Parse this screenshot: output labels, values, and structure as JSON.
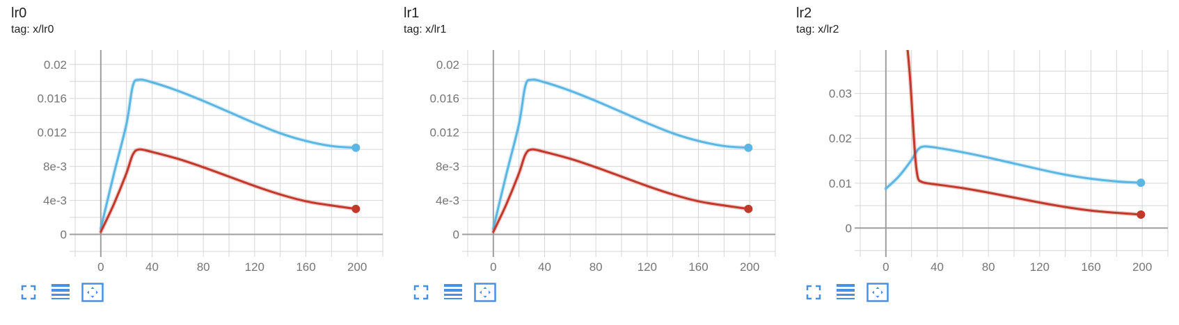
{
  "colors": {
    "series_blue": "#5bb6e3",
    "series_red": "#c0392b",
    "grid": "#d6d6d6",
    "axis": "#9e9e9e",
    "icon": "#4a90e2"
  },
  "toolbar_icons": [
    "fullscreen-icon",
    "list-icon",
    "fit-domain-icon"
  ],
  "chart_data": [
    {
      "type": "line",
      "title": "lr0",
      "tag": "tag: x/lr0",
      "xlim": [
        -20,
        220
      ],
      "ylim": [
        -0.002,
        0.0217
      ],
      "x_ticks": [
        0,
        40,
        80,
        120,
        160,
        200
      ],
      "x_tick_labels": [
        "0",
        "40",
        "80",
        "120",
        "160",
        "200"
      ],
      "y_ticks": [
        0,
        0.004,
        0.008,
        0.012,
        0.016,
        0.02
      ],
      "y_tick_labels": [
        "0",
        "4e-3",
        "8e-3",
        "0.012",
        "0.016",
        "0.02"
      ],
      "series": [
        {
          "name": "blue",
          "color": "#5bb6e3",
          "x": [
            0,
            10,
            20,
            25,
            30,
            40,
            60,
            80,
            100,
            120,
            140,
            160,
            180,
            199
          ],
          "y": [
            0.0007,
            0.007,
            0.013,
            0.0175,
            0.0182,
            0.0179,
            0.0169,
            0.0157,
            0.0144,
            0.0131,
            0.0119,
            0.011,
            0.0104,
            0.0102
          ]
        },
        {
          "name": "red",
          "color": "#c0392b",
          "x": [
            0,
            10,
            20,
            25,
            30,
            40,
            60,
            80,
            100,
            120,
            140,
            160,
            180,
            199
          ],
          "y": [
            0.0003,
            0.0035,
            0.0072,
            0.0094,
            0.01,
            0.0097,
            0.0089,
            0.0079,
            0.0068,
            0.0057,
            0.0047,
            0.0039,
            0.0034,
            0.003
          ]
        }
      ]
    },
    {
      "type": "line",
      "title": "lr1",
      "tag": "tag: x/lr1",
      "xlim": [
        -20,
        220
      ],
      "ylim": [
        -0.002,
        0.0217
      ],
      "x_ticks": [
        0,
        40,
        80,
        120,
        160,
        200
      ],
      "x_tick_labels": [
        "0",
        "40",
        "80",
        "120",
        "160",
        "200"
      ],
      "y_ticks": [
        0,
        0.004,
        0.008,
        0.012,
        0.016,
        0.02
      ],
      "y_tick_labels": [
        "0",
        "4e-3",
        "8e-3",
        "0.012",
        "0.016",
        "0.02"
      ],
      "series": [
        {
          "name": "blue",
          "color": "#5bb6e3",
          "x": [
            0,
            10,
            20,
            25,
            30,
            40,
            60,
            80,
            100,
            120,
            140,
            160,
            180,
            199
          ],
          "y": [
            0.0007,
            0.007,
            0.013,
            0.0175,
            0.0182,
            0.0179,
            0.0169,
            0.0157,
            0.0144,
            0.0131,
            0.0119,
            0.011,
            0.0104,
            0.0102
          ]
        },
        {
          "name": "red",
          "color": "#c0392b",
          "x": [
            0,
            10,
            20,
            25,
            30,
            40,
            60,
            80,
            100,
            120,
            140,
            160,
            180,
            199
          ],
          "y": [
            0.0003,
            0.0035,
            0.0072,
            0.0094,
            0.01,
            0.0097,
            0.0089,
            0.0079,
            0.0068,
            0.0057,
            0.0047,
            0.0039,
            0.0034,
            0.003
          ]
        }
      ]
    },
    {
      "type": "line",
      "title": "lr2",
      "tag": "tag: x/lr2",
      "xlim": [
        -20,
        220
      ],
      "ylim": [
        -0.0052,
        0.0397
      ],
      "x_ticks": [
        0,
        40,
        80,
        120,
        160,
        200
      ],
      "x_tick_labels": [
        "0",
        "40",
        "80",
        "120",
        "160",
        "200"
      ],
      "y_ticks": [
        0,
        0.01,
        0.02,
        0.03
      ],
      "y_tick_labels": [
        "0",
        "0.01",
        "0.02",
        "0.03"
      ],
      "series": [
        {
          "name": "blue",
          "color": "#5bb6e3",
          "x": [
            0,
            10,
            20,
            25,
            30,
            40,
            60,
            80,
            100,
            120,
            140,
            160,
            180,
            199
          ],
          "y": [
            0.0088,
            0.0115,
            0.0152,
            0.0175,
            0.0182,
            0.0179,
            0.0169,
            0.0157,
            0.0144,
            0.0131,
            0.0119,
            0.011,
            0.0104,
            0.0101
          ]
        },
        {
          "name": "red",
          "color": "#c0392b",
          "x": [
            17,
            19,
            21,
            23,
            25,
            28,
            32,
            40,
            60,
            80,
            100,
            120,
            140,
            160,
            180,
            199
          ],
          "y": [
            0.0397,
            0.033,
            0.024,
            0.0155,
            0.0112,
            0.0103,
            0.01,
            0.0097,
            0.0089,
            0.0079,
            0.0068,
            0.0057,
            0.0047,
            0.0039,
            0.0034,
            0.003
          ]
        }
      ]
    }
  ]
}
